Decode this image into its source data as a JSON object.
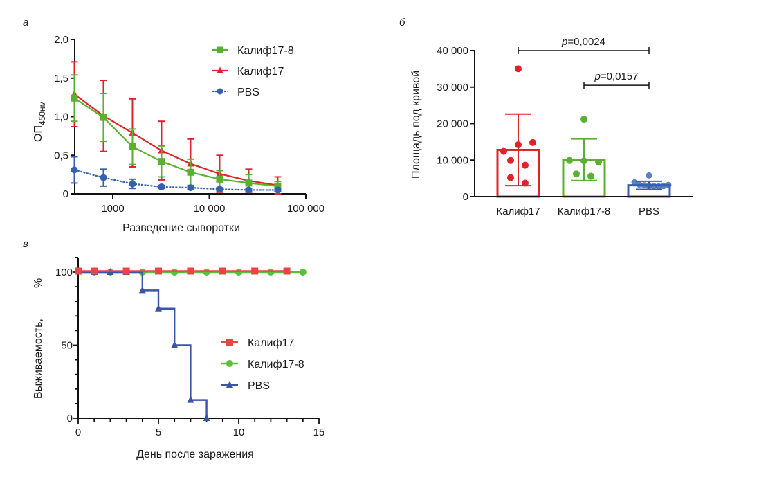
{
  "colors": {
    "kalif17": "#e0232a",
    "kalif17_8": "#5bb030",
    "pbs": "#3560b0",
    "kalif17_c": "#e84545",
    "kalif17_8_c": "#5cbf3a",
    "pbs_c": "#3b55a6",
    "axis": "#111111"
  },
  "chart_data": [
    {
      "id": "a",
      "panel_label": "а",
      "type": "line",
      "xscale": "log",
      "xlabel": "Разведение сыворотки",
      "ylabel_main": "ОП",
      "ylabel_sub": "450нм",
      "xlim": [
        400,
        100000
      ],
      "ylim": [
        0,
        2.0
      ],
      "xticks": [
        {
          "v": 1000,
          "label": "1000"
        },
        {
          "v": 10000,
          "label": "10 000"
        },
        {
          "v": 100000,
          "label": "100 000"
        }
      ],
      "yticks": [
        {
          "v": 0,
          "label": "0"
        },
        {
          "v": 0.5,
          "label": "0,5"
        },
        {
          "v": 1.0,
          "label": "1,0"
        },
        {
          "v": 1.5,
          "label": "1,5"
        },
        {
          "v": 2.0,
          "label": "2,0"
        }
      ],
      "x": [
        400,
        800,
        1600,
        3200,
        6400,
        12800,
        25600,
        51200
      ],
      "legend": "top-right",
      "series": [
        {
          "name": "Калиф17-8",
          "key": "kalif17_8",
          "marker": "square",
          "dashed": false,
          "values": [
            1.24,
            0.99,
            0.61,
            0.42,
            0.28,
            0.19,
            0.14,
            0.1
          ],
          "err": [
            0.3,
            0.31,
            0.23,
            0.2,
            0.17,
            0.11,
            0.11,
            0.06
          ]
        },
        {
          "name": "Калиф17",
          "key": "kalif17",
          "marker": "triangle",
          "dashed": false,
          "values": [
            1.29,
            1.01,
            0.79,
            0.56,
            0.39,
            0.26,
            0.17,
            0.11
          ],
          "err": [
            0.42,
            0.46,
            0.44,
            0.38,
            0.32,
            0.24,
            0.15,
            0.11
          ]
        },
        {
          "name": "PBS",
          "key": "pbs",
          "marker": "circle",
          "dashed": true,
          "values": [
            0.31,
            0.21,
            0.13,
            0.09,
            0.08,
            0.06,
            0.05,
            0.05
          ],
          "err": [
            0.17,
            0.11,
            0.06,
            0.02,
            0.02,
            0.02,
            0.02,
            0.02
          ]
        }
      ]
    },
    {
      "id": "b",
      "panel_label": "б",
      "type": "bar",
      "ylabel": "Площадь под кривой",
      "ylim": [
        0,
        40000
      ],
      "yticks": [
        {
          "v": 0,
          "label": "0"
        },
        {
          "v": 10000,
          "label": "10 000"
        },
        {
          "v": 20000,
          "label": "20 000"
        },
        {
          "v": 30000,
          "label": "30 000"
        },
        {
          "v": 40000,
          "label": "40 000"
        }
      ],
      "categories": [
        "Калиф17",
        "Калиф17-8",
        "PBS"
      ],
      "keys": [
        "kalif17",
        "kalif17_8",
        "pbs"
      ],
      "values": [
        12800,
        10100,
        3100
      ],
      "sd": [
        9800,
        5700,
        1100
      ],
      "points": [
        [
          35000,
          14200,
          14800,
          12400,
          9900,
          8600,
          5200,
          3700
        ],
        [
          21200,
          9900,
          9800,
          9500,
          6200,
          5600
        ],
        [
          5800,
          3900,
          3300,
          3100,
          2900,
          2900,
          2800,
          2900,
          3200
        ]
      ],
      "significance": [
        {
          "from": 0,
          "to": 2,
          "y": 40000,
          "label_p": "p",
          "label_rest": "=0,0024"
        },
        {
          "from": 1,
          "to": 2,
          "y": 30500,
          "label_p": "p",
          "label_rest": "=0,0157"
        }
      ]
    },
    {
      "id": "c",
      "panel_label": "в",
      "type": "line",
      "step": true,
      "xlabel": "День после заражения",
      "ylabel": "Выживаемость,",
      "ylabel_unit": "%",
      "xlim": [
        0,
        15
      ],
      "ylim": [
        0,
        100
      ],
      "xticks": [
        {
          "v": 0,
          "label": "0"
        },
        {
          "v": 5,
          "label": "5"
        },
        {
          "v": 10,
          "label": "10"
        },
        {
          "v": 15,
          "label": "15"
        }
      ],
      "yticks": [
        {
          "v": 0,
          "label": "0"
        },
        {
          "v": 50,
          "label": "50"
        },
        {
          "v": 100,
          "label": "100"
        }
      ],
      "legend": "right-center",
      "series": [
        {
          "name": "Калиф17",
          "key": "kalif17_c",
          "marker": "square",
          "x": [
            0,
            1,
            3,
            5,
            7,
            9,
            11,
            13
          ],
          "values": [
            100,
            100,
            100,
            100,
            100,
            100,
            100,
            100
          ],
          "line_end": 13
        },
        {
          "name": "Калиф17-8",
          "key": "kalif17_8_c",
          "marker": "circle",
          "x": [
            1,
            2,
            4,
            6,
            8,
            10,
            12,
            14
          ],
          "values": [
            100,
            100,
            100,
            100,
            100,
            100,
            100,
            100
          ],
          "line_end": 14
        },
        {
          "name": "PBS",
          "key": "pbs_c",
          "marker": "triangle",
          "x": [
            0,
            1,
            2,
            3,
            4,
            5,
            6,
            7,
            8
          ],
          "values": [
            100,
            100,
            100,
            100,
            87.5,
            75,
            50,
            12.5,
            0
          ],
          "line_end": 8
        }
      ]
    }
  ]
}
